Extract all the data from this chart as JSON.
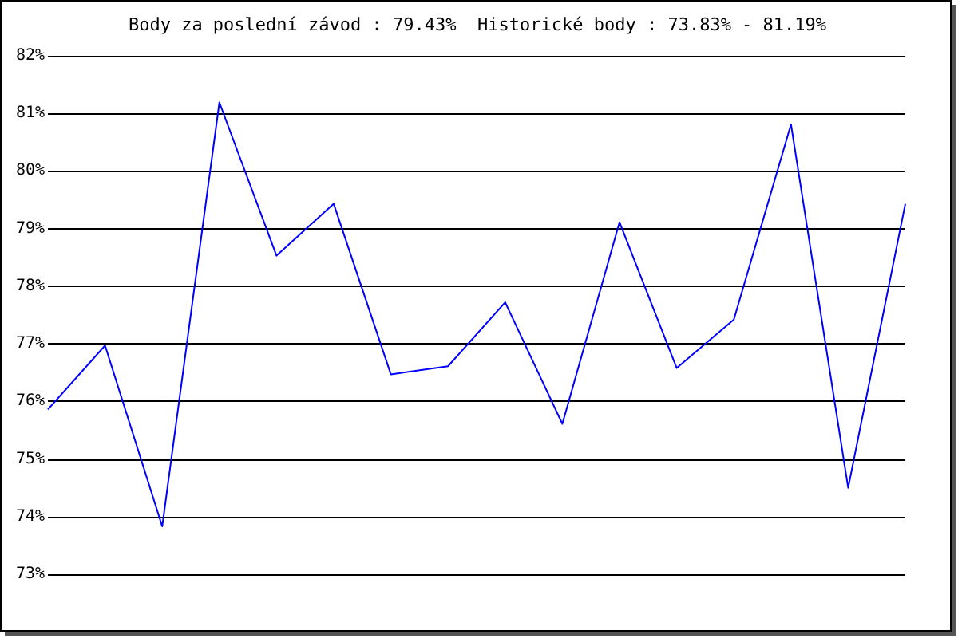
{
  "chart_data": {
    "type": "line",
    "title": "Body za poslední závod : 79.43%  Historické body : 73.83% - 81.19%",
    "categories": [
      null,
      null,
      null,
      null,
      null,
      null,
      null,
      null,
      null,
      null,
      null,
      null,
      null,
      null,
      null,
      null
    ],
    "series": [
      {
        "color": "#0000ff",
        "values": [
          75.86,
          76.97,
          73.83,
          81.19,
          78.53,
          79.43,
          76.47,
          76.61,
          77.72,
          75.61,
          79.11,
          76.58,
          77.42,
          80.81,
          74.5,
          79.43
        ]
      }
    ],
    "ylim": [
      73,
      82
    ],
    "yticks": [
      {
        "value": 73,
        "label": "73%"
      },
      {
        "value": 74,
        "label": "74%"
      },
      {
        "value": 75,
        "label": "75%"
      },
      {
        "value": 76,
        "label": "76%"
      },
      {
        "value": 77,
        "label": "77%"
      },
      {
        "value": 78,
        "label": "78%"
      },
      {
        "value": 79,
        "label": "79%"
      },
      {
        "value": 80,
        "label": "80%"
      },
      {
        "value": 81,
        "label": "81%"
      },
      {
        "value": 82,
        "label": "82%"
      }
    ],
    "grid": "y",
    "marker": "none",
    "line_style": "solid"
  }
}
